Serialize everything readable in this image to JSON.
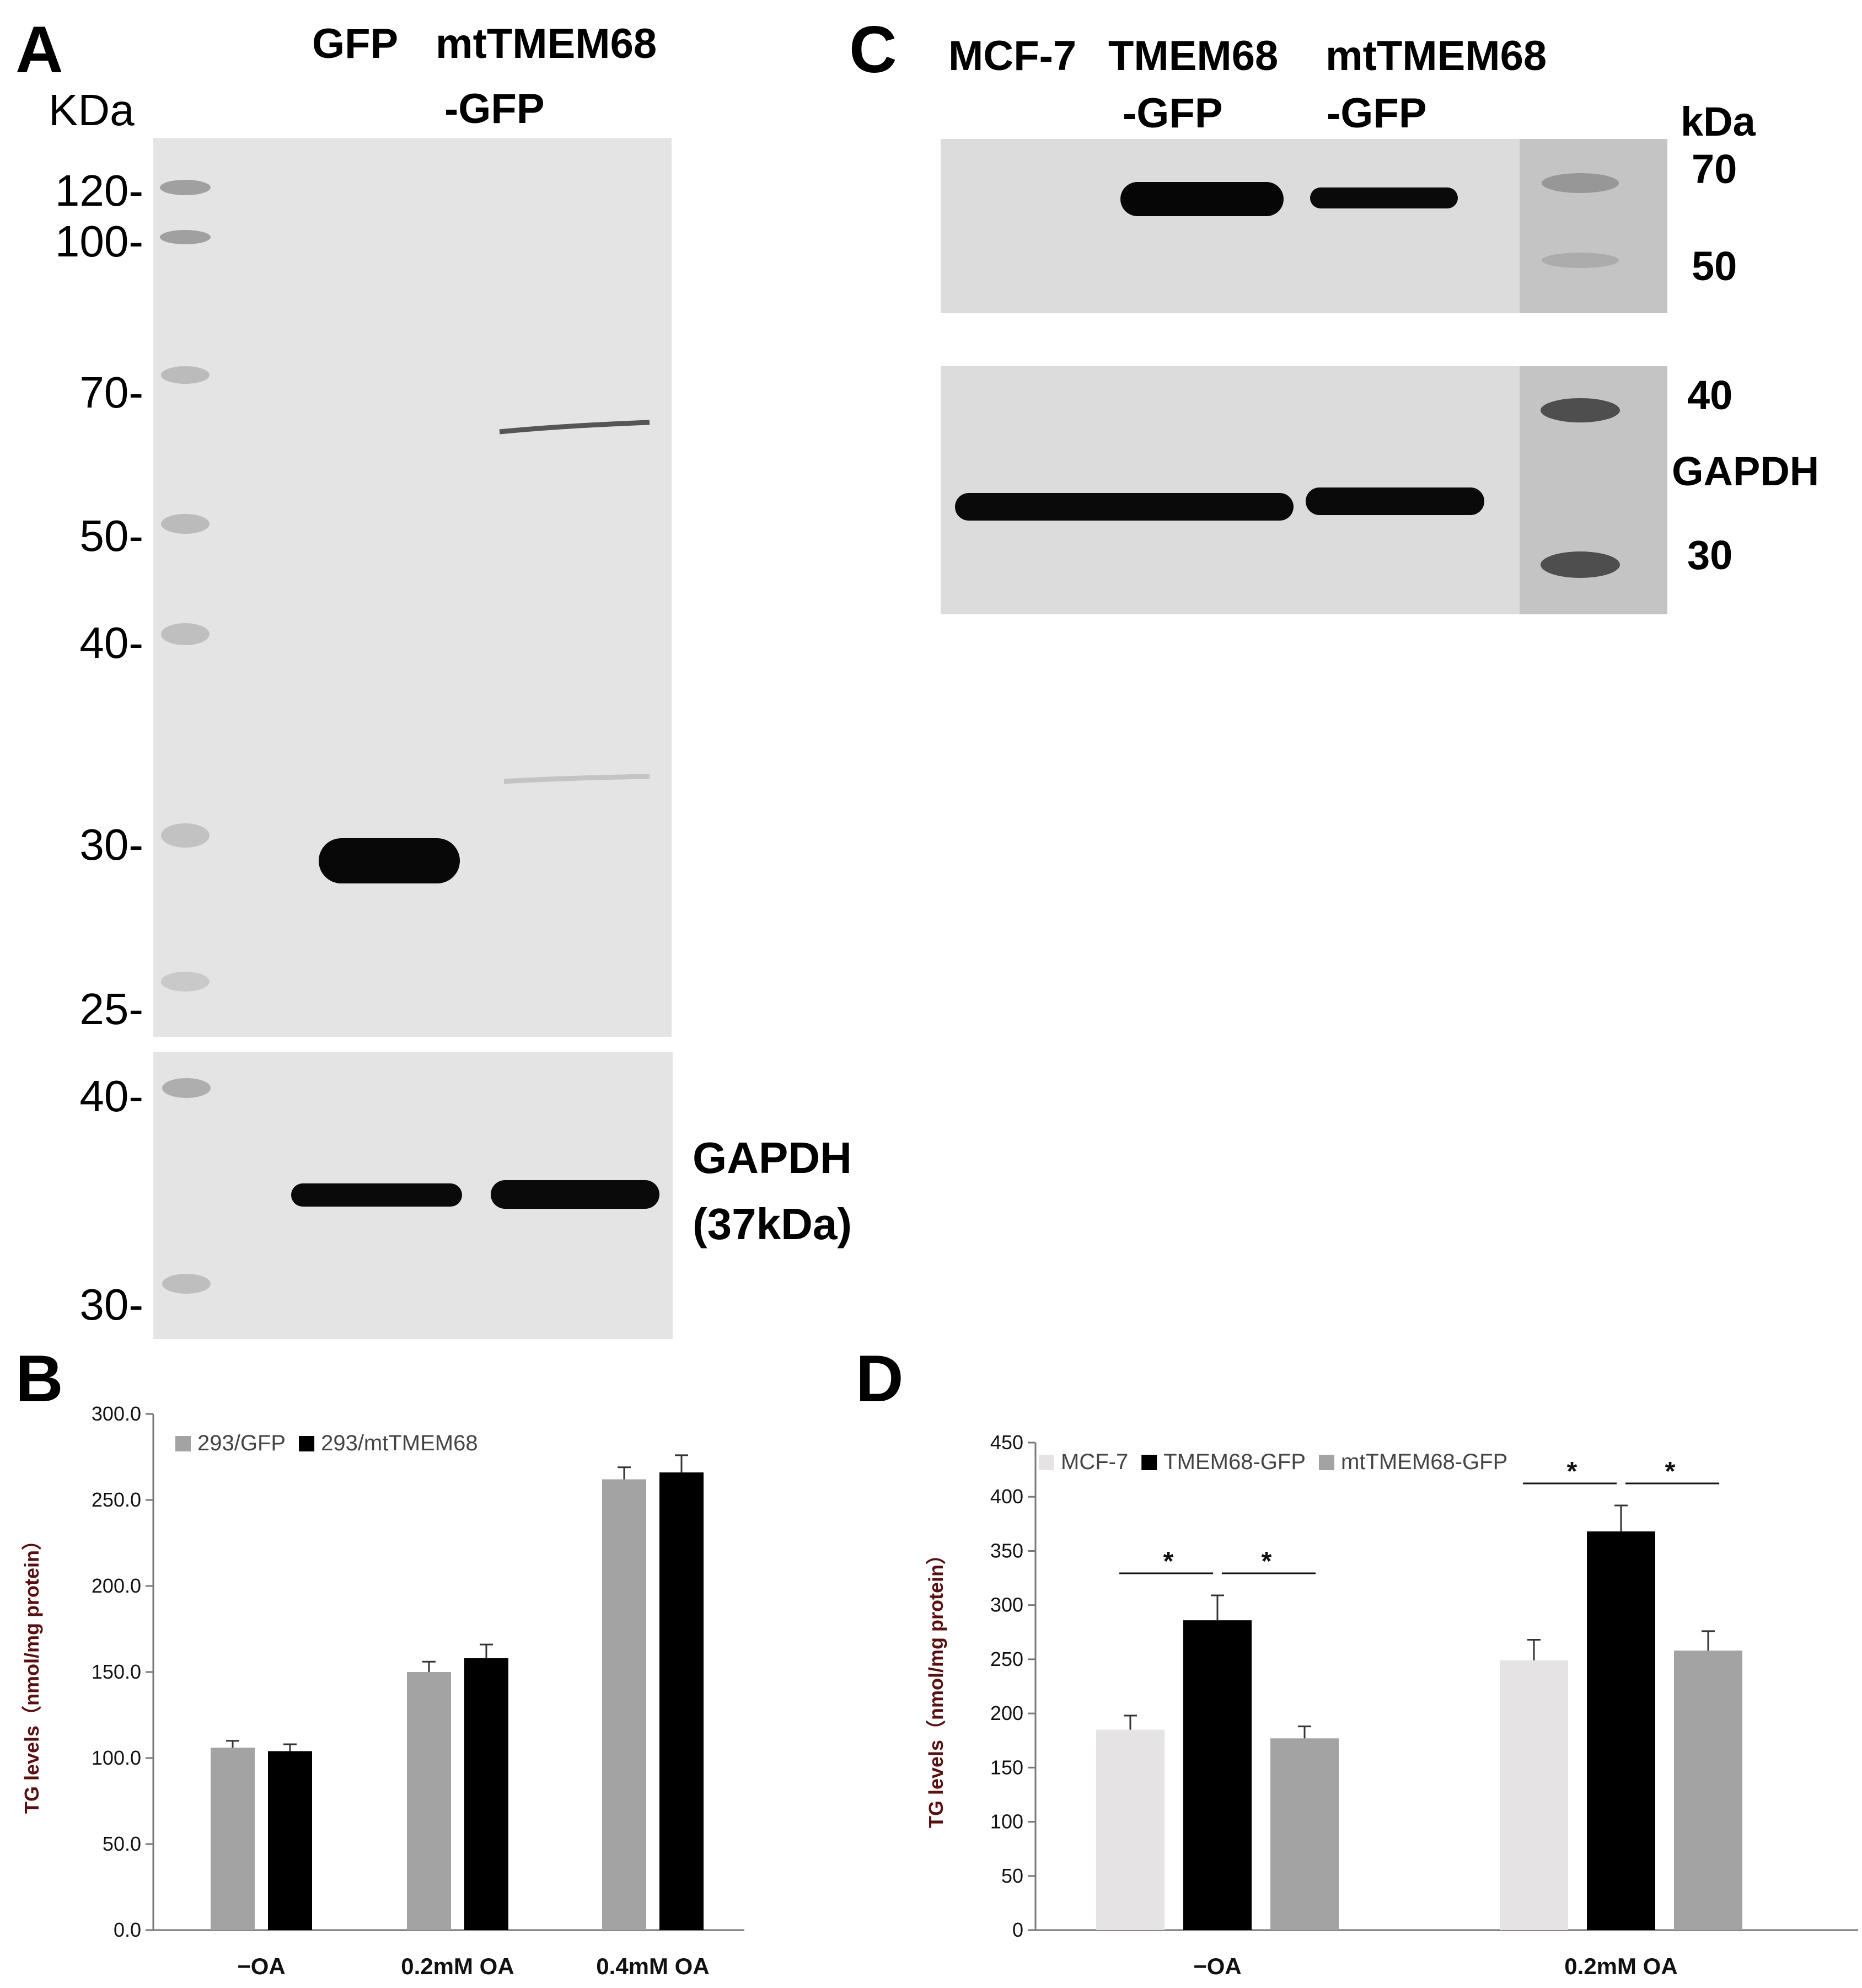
{
  "colors": {
    "blot_bg": "#e6e6e6",
    "band": "#080808",
    "marker": "#888888",
    "bar_light": "#e5e3e4",
    "bar_black": "#000000",
    "bar_gray": "#a3a3a3",
    "axis_label": "#5a1010"
  },
  "panel_a": {
    "letter": "A",
    "lane_labels": [
      "GFP",
      "mtTMEM68",
      "-GFP"
    ],
    "mw_unit": "KDa",
    "mw_top": [
      "120-",
      "100-",
      "70-",
      "50-",
      "40-",
      "30-",
      "25-"
    ],
    "mw_bottom": [
      "40-",
      "30-"
    ],
    "gapdh_label": "GAPDH",
    "gapdh_size": "(37kDa)"
  },
  "panel_c": {
    "letter": "C",
    "lane_labels": [
      "MCF-7",
      "TMEM68",
      "mtTMEM68",
      "-GFP",
      "-GFP"
    ],
    "mw_unit": "kDa",
    "mw_top": [
      "70",
      "50"
    ],
    "mw_bottom": [
      "40",
      "30"
    ],
    "gapdh_label": "GAPDH"
  },
  "chart_data": [
    {
      "panel": "B",
      "type": "bar",
      "ylabel": "TG levels（nmol/mg protein）",
      "ylim": [
        0,
        300
      ],
      "yticks": [
        "0.0",
        "50.0",
        "100.0",
        "150.0",
        "200.0",
        "250.0",
        "300.0"
      ],
      "categories": [
        "−OA",
        "0.2mM OA",
        "0.4mM OA"
      ],
      "legend_position": "top-left",
      "series": [
        {
          "name": "293/GFP",
          "color": "#a3a3a3",
          "values": [
            106,
            150,
            262
          ],
          "errors": [
            4,
            6,
            7
          ]
        },
        {
          "name": "293/mtTMEM68",
          "color": "#000000",
          "values": [
            104,
            158,
            266
          ],
          "errors": [
            4,
            8,
            10
          ]
        }
      ]
    },
    {
      "panel": "D",
      "type": "bar",
      "ylabel": "TG levels（nmol/mg protein）",
      "ylim": [
        0,
        450
      ],
      "yticks": [
        "0",
        "50",
        "100",
        "150",
        "200",
        "250",
        "300",
        "350",
        "400",
        "450"
      ],
      "categories": [
        "−OA",
        "0.2mM OA"
      ],
      "legend_position": "top-left",
      "significance": "*",
      "series": [
        {
          "name": "MCF-7",
          "color": "#e5e3e4",
          "values": [
            185,
            249
          ],
          "errors": [
            13,
            19
          ]
        },
        {
          "name": "TMEM68-GFP",
          "color": "#000000",
          "values": [
            286,
            368
          ],
          "errors": [
            23,
            24
          ]
        },
        {
          "name": "mtTMEM68-GFP",
          "color": "#a3a3a3",
          "values": [
            177,
            258
          ],
          "errors": [
            11,
            18
          ]
        }
      ]
    }
  ]
}
